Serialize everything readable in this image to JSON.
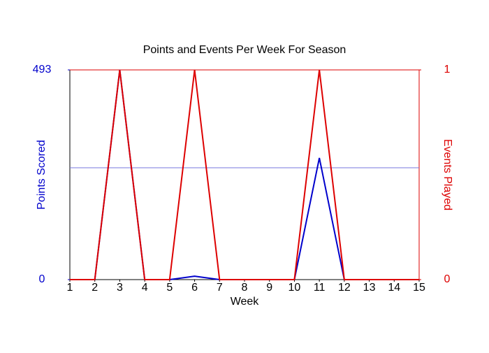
{
  "chart_data": {
    "type": "line",
    "title": "Points and Events Per Week For Season",
    "x_label": "Week",
    "y_label": "Points Scored",
    "y2_label": "Events Played",
    "x": [
      1,
      2,
      3,
      4,
      5,
      6,
      7,
      8,
      9,
      10,
      11,
      12,
      13,
      14,
      15
    ],
    "xlim": [
      1,
      15
    ],
    "xticks": [
      1,
      2,
      3,
      4,
      5,
      6,
      7,
      8,
      9,
      10,
      11,
      12,
      13,
      14,
      15
    ],
    "ylim": [
      0,
      493
    ],
    "yticks": [
      0,
      493
    ],
    "y2lim": [
      0,
      1
    ],
    "y2ticks": [
      0,
      1
    ],
    "y_color": "#0000cc",
    "y2_color": "#dd0000",
    "reference_lines": [
      {
        "axis": "y",
        "value": 263,
        "color": "#7777dd"
      }
    ],
    "series": [
      {
        "name": "Points Scored",
        "color": "#0000cc",
        "values": [
          0,
          0,
          493,
          0,
          0,
          8,
          0,
          0,
          0,
          0,
          286,
          0,
          0,
          0,
          0
        ]
      },
      {
        "name": "Events Played",
        "color": "#dd0000",
        "axis": "y2",
        "values": [
          0,
          0,
          1,
          0,
          0,
          1,
          0,
          0,
          0,
          0,
          1,
          0,
          0,
          0,
          0
        ]
      }
    ]
  }
}
